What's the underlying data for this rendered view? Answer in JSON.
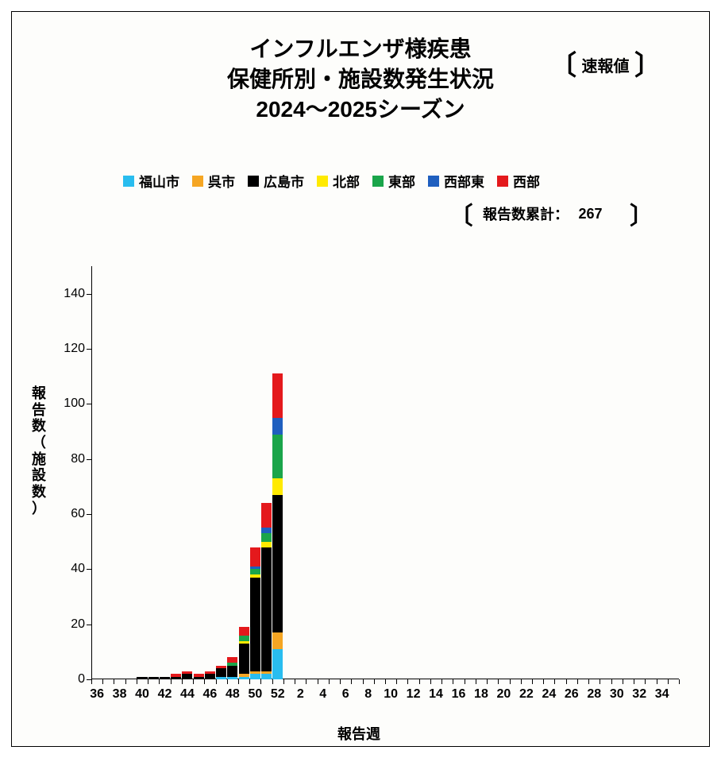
{
  "title": {
    "line1": "インフルエンザ様疾患",
    "line2": "保健所別・施設数発生状況",
    "line3": "2024～2025シーズン",
    "fontsize": 28,
    "color": "#000000"
  },
  "badge_preliminary": {
    "text": "速報値",
    "bracket_left": "〔",
    "bracket_right": "〕"
  },
  "cumulative": {
    "label": "報告数累計：",
    "value": "267",
    "bracket_left": "〔",
    "bracket_right": "〕"
  },
  "legend": {
    "fontsize": 17,
    "items": [
      {
        "key": "fukuyama",
        "label": "福山市",
        "color": "#29bdef"
      },
      {
        "key": "kure",
        "label": "呉市",
        "color": "#f5a623"
      },
      {
        "key": "hiroshima",
        "label": "広島市",
        "color": "#000000"
      },
      {
        "key": "hokubu",
        "label": "北部",
        "color": "#ffea00"
      },
      {
        "key": "toubu",
        "label": "東部",
        "color": "#1aa54a"
      },
      {
        "key": "seibuhigashi",
        "label": "西部東",
        "color": "#1f5fbf"
      },
      {
        "key": "seibu",
        "label": "西部",
        "color": "#e4191c"
      }
    ]
  },
  "axes": {
    "ylabel": "報告数（施設数）",
    "xlabel": "報告週",
    "ylim": [
      0,
      150
    ],
    "ytick_step": 20,
    "yticks": [
      0,
      20,
      40,
      60,
      80,
      100,
      120,
      140
    ],
    "xticks_display": [
      "36",
      "38",
      "40",
      "42",
      "44",
      "46",
      "48",
      "50",
      "52",
      "2",
      "4",
      "6",
      "8",
      "10",
      "12",
      "14",
      "16",
      "18",
      "20",
      "22",
      "24",
      "26",
      "28",
      "30",
      "32",
      "34"
    ],
    "x_all_weeks": [
      36,
      37,
      38,
      39,
      40,
      41,
      42,
      43,
      44,
      45,
      46,
      47,
      48,
      49,
      50,
      51,
      52,
      1,
      2,
      3,
      4,
      5,
      6,
      7,
      8,
      9,
      10,
      11,
      12,
      13,
      14,
      15,
      16,
      17,
      18,
      19,
      20,
      21,
      22,
      23,
      24,
      25,
      26,
      27,
      28,
      29,
      30,
      31,
      32,
      33,
      34,
      35
    ],
    "plot_bg": "#ffffff",
    "axis_color": "#000000"
  },
  "chart": {
    "type": "stacked_bar",
    "bar_width_ratio": 0.92,
    "series_order_bottom_to_top": [
      "fukuyama",
      "kure",
      "hiroshima",
      "hokubu",
      "toubu",
      "seibuhigashi",
      "seibu"
    ],
    "data": {
      "40": {
        "hiroshima": 1
      },
      "41": {
        "hiroshima": 1
      },
      "42": {
        "hiroshima": 1
      },
      "43": {
        "hiroshima": 1,
        "seibu": 1
      },
      "44": {
        "hiroshima": 2,
        "seibu": 1
      },
      "45": {
        "hiroshima": 1,
        "seibu": 1
      },
      "46": {
        "hiroshima": 2,
        "seibu": 1
      },
      "47": {
        "fukuyama": 1,
        "hiroshima": 3,
        "seibu": 1
      },
      "48": {
        "fukuyama": 1,
        "hiroshima": 4,
        "toubu": 1,
        "seibu": 2
      },
      "49": {
        "fukuyama": 1,
        "kure": 1,
        "hiroshima": 11,
        "hokubu": 1,
        "toubu": 2,
        "seibu": 3
      },
      "50": {
        "fukuyama": 2,
        "kure": 1,
        "hiroshima": 34,
        "hokubu": 1,
        "toubu": 2,
        "seibuhigashi": 1,
        "seibu": 7
      },
      "51": {
        "fukuyama": 2,
        "kure": 1,
        "hiroshima": 45,
        "hokubu": 2,
        "toubu": 3,
        "seibuhigashi": 2,
        "seibu": 9
      },
      "52": {
        "fukuyama": 11,
        "kure": 6,
        "hiroshima": 50,
        "hokubu": 6,
        "toubu": 16,
        "seibuhigashi": 6,
        "seibu": 16
      }
    }
  }
}
